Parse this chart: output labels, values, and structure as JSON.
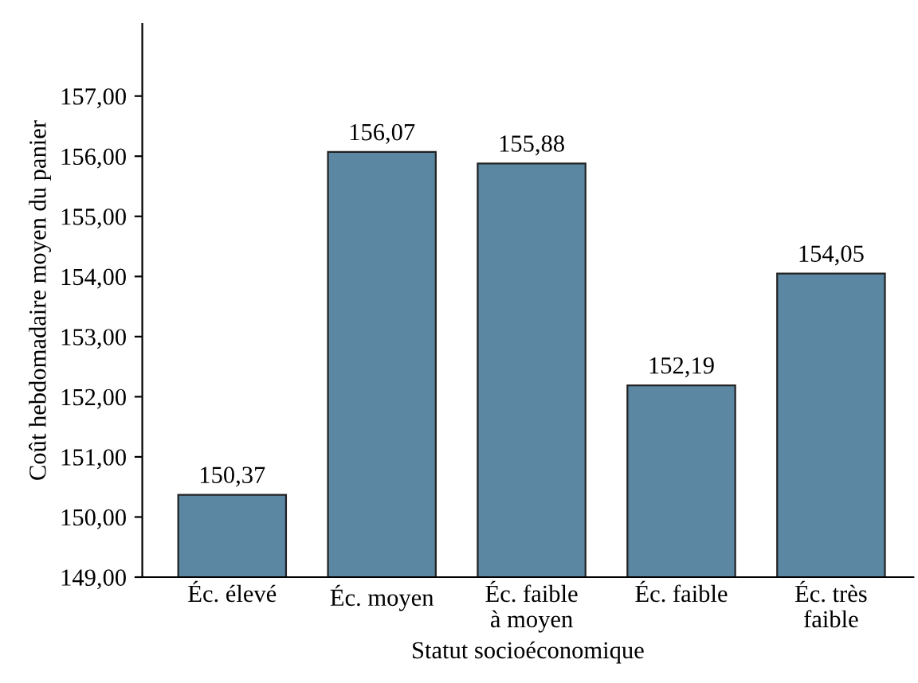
{
  "chart_data": {
    "type": "bar",
    "xlabel": "Statut socioéconomique",
    "ylabel": "Coût hebdomadaire moyen du panier",
    "categories": [
      "Éc. élevé",
      "Éc. moyen",
      "Éc. faible\nà moyen",
      "Éc. faible",
      "Éc. très\nfaible"
    ],
    "values": [
      150.37,
      156.07,
      155.88,
      152.19,
      154.05
    ],
    "value_labels": [
      "150,37",
      "156,07",
      "155,88",
      "152,19",
      "154,05"
    ],
    "color": "#5b87a3",
    "ylim": [
      149,
      158.2
    ],
    "yticks": [
      {
        "value": 149,
        "label": "149,00"
      },
      {
        "value": 150,
        "label": "150,00"
      },
      {
        "value": 151,
        "label": "151,00"
      },
      {
        "value": 152,
        "label": "152,00"
      },
      {
        "value": 153,
        "label": "153,00"
      },
      {
        "value": 154,
        "label": "154,00"
      },
      {
        "value": 155,
        "label": "155,00"
      },
      {
        "value": 156,
        "label": "156,00"
      },
      {
        "value": 157,
        "label": "157,00"
      }
    ],
    "grid": false,
    "legend": false
  }
}
